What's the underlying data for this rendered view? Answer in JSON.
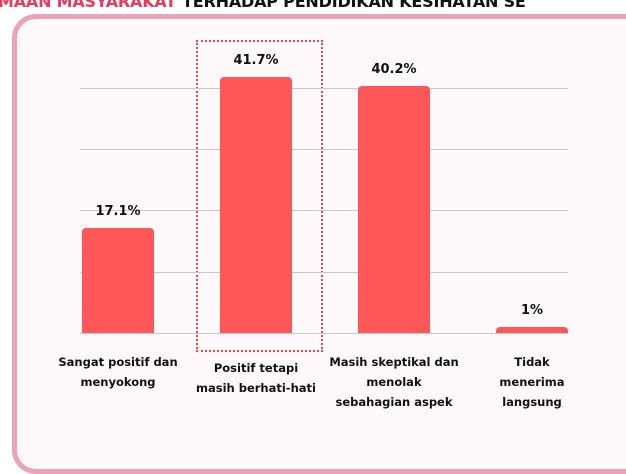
{
  "header": {
    "title_highlight": "MAAN MASYARAKAT",
    "title_rest": "TERHADAP PENDIDIKAN KESIHATAN SE"
  },
  "chart_data": {
    "type": "bar",
    "categories": [
      "Sangat positif dan menyokong",
      "Positif tetapi masih berhati-hati",
      "Masih skeptikal dan menolak sebahagian aspek",
      "Tidak menerima langsung"
    ],
    "values": [
      17.1,
      41.7,
      40.2,
      1
    ],
    "value_labels": [
      "17.1%",
      "41.7%",
      "40.2%",
      "1%"
    ],
    "color": "#ff5757",
    "ylim": [
      0,
      45
    ],
    "yticks": [
      0,
      10,
      20,
      30,
      40
    ],
    "grid": true
  }
}
